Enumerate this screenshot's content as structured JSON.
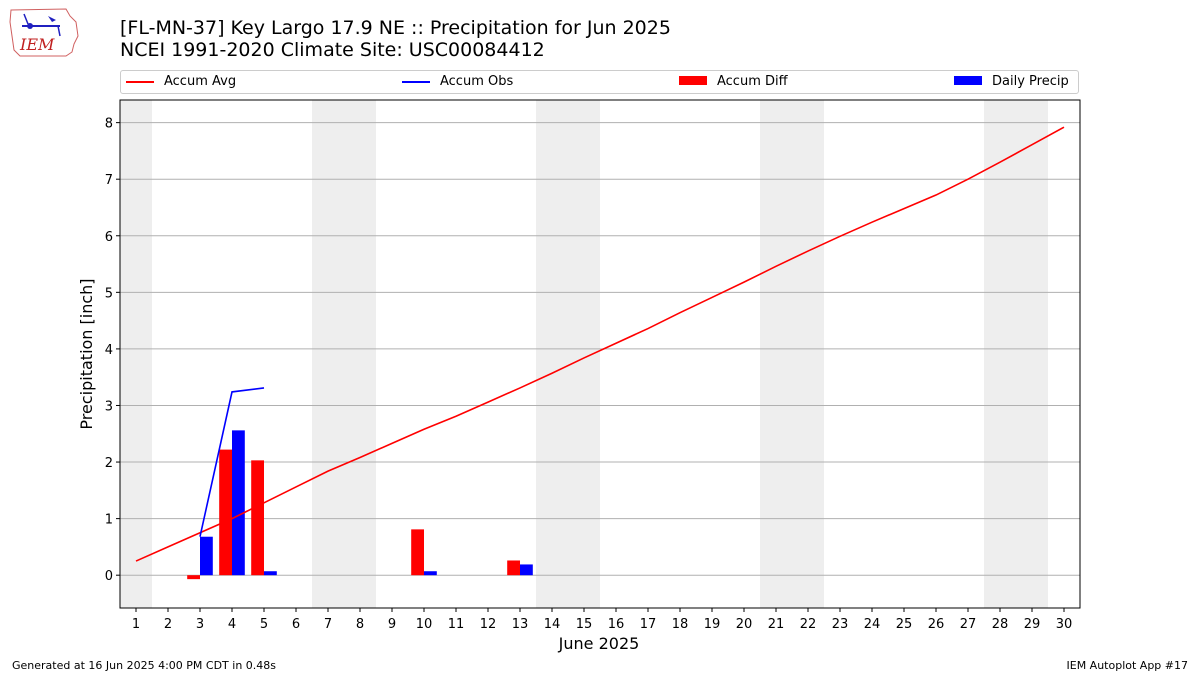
{
  "header": {
    "title_line1": "[FL-MN-37] Key Largo 17.9 NE :: Precipitation for Jun 2025",
    "title_line2": "NCEI 1991-2020 Climate Site: USC00084412",
    "logo_text": "IEM"
  },
  "legend": {
    "items": [
      {
        "label": "Accum Avg",
        "kind": "line",
        "color": "#ff0000"
      },
      {
        "label": "Accum Obs",
        "kind": "line",
        "color": "#0000ff"
      },
      {
        "label": "Accum Diff",
        "kind": "patch",
        "color": "#ff0000"
      },
      {
        "label": "Daily Precip",
        "kind": "patch",
        "color": "#0000ff"
      }
    ]
  },
  "footer": {
    "generated": "Generated at 16 Jun 2025 4:00 PM CDT in 0.48s",
    "app": "IEM Autoplot App #17"
  },
  "chart_data": {
    "type": "bar",
    "xlabel": "June 2025",
    "ylabel": "Precipitation [inch]",
    "xlim": [
      0.5,
      30.5
    ],
    "ylim": [
      -0.58,
      8.4
    ],
    "yticks": [
      0,
      1,
      2,
      3,
      4,
      5,
      6,
      7,
      8
    ],
    "xticks": [
      1,
      2,
      3,
      4,
      5,
      6,
      7,
      8,
      9,
      10,
      11,
      12,
      13,
      14,
      15,
      16,
      17,
      18,
      19,
      20,
      21,
      22,
      23,
      24,
      25,
      26,
      27,
      28,
      29,
      30
    ],
    "grid": "horizontal",
    "legend_placement": "top, above plot",
    "weekend_shading": [
      [
        0.5,
        1.5
      ],
      [
        6.5,
        8.5
      ],
      [
        13.5,
        15.5
      ],
      [
        20.5,
        22.5
      ],
      [
        27.5,
        29.5
      ]
    ],
    "colors": {
      "avg": "#ff0000",
      "obs": "#0000ff",
      "shade": "#eeeeee",
      "grid": "#b0b0b0"
    },
    "series": [
      {
        "name": "Accum Avg",
        "kind": "line",
        "x": [
          1,
          2,
          3,
          4,
          5,
          6,
          7,
          8,
          9,
          10,
          11,
          12,
          13,
          14,
          15,
          16,
          17,
          18,
          19,
          20,
          21,
          22,
          23,
          24,
          25,
          26,
          27,
          28,
          29,
          30
        ],
        "values": [
          0.25,
          0.5,
          0.75,
          1.0,
          1.28,
          1.56,
          1.84,
          2.08,
          2.33,
          2.58,
          2.81,
          3.06,
          3.31,
          3.57,
          3.84,
          4.1,
          4.36,
          4.64,
          4.91,
          5.18,
          5.46,
          5.73,
          5.99,
          6.24,
          6.48,
          6.72,
          7.0,
          7.3,
          7.61,
          7.92
        ]
      },
      {
        "name": "Accum Obs",
        "kind": "line",
        "x": [
          3,
          4,
          5
        ],
        "values": [
          0.68,
          3.24,
          3.31
        ]
      },
      {
        "name": "Accum Diff",
        "kind": "bar",
        "x": [
          3,
          4,
          5,
          10,
          13
        ],
        "values": [
          -0.07,
          2.22,
          2.03,
          0.81,
          0.26
        ]
      },
      {
        "name": "Daily Precip",
        "kind": "bar",
        "x": [
          3,
          4,
          5,
          10,
          13
        ],
        "values": [
          0.68,
          2.56,
          0.07,
          0.07,
          0.19
        ]
      }
    ]
  }
}
